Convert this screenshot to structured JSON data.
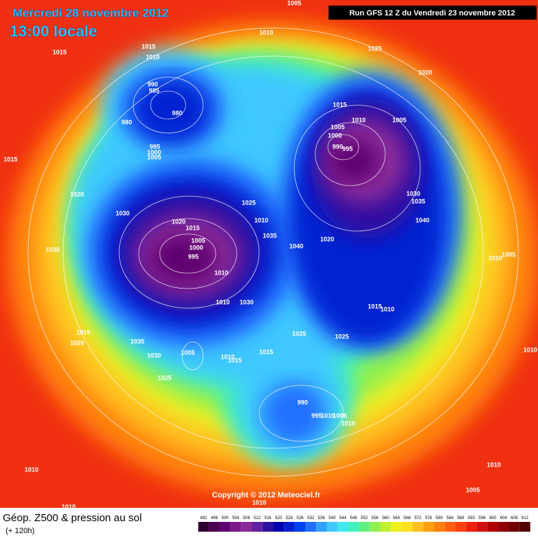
{
  "header": {
    "date": "Mercredi 28 novembre 2012",
    "time": "13:00 locale",
    "run": "Run GFS 12 Z du Vendredi 23 novembre 2012"
  },
  "copyright": "Copyright © 2012 Meteociel.fr",
  "footer": {
    "title": "Géop. Z500 & pression au sol",
    "lead": "(+ 120h)"
  },
  "isobar_labels": [
    1005,
    1010,
    1015,
    1015,
    1010,
    1025,
    1020,
    990,
    985,
    980,
    980,
    1015,
    1010,
    1005,
    1005,
    1000,
    995,
    990,
    995,
    1000,
    1005,
    1015,
    1020,
    1025,
    1030,
    1035,
    1030,
    1020,
    1015,
    1040,
    1010,
    1005,
    1035,
    1020,
    1040,
    1000,
    995,
    1005,
    1010,
    1030,
    1010,
    1010,
    1030,
    1015,
    1010,
    1025,
    1025,
    1015,
    1020,
    1035,
    1015,
    1005,
    1010,
    1015,
    1030,
    1010,
    1025,
    990,
    995,
    1010,
    1005,
    1010,
    1010,
    1010,
    1005,
    1010,
    1010
  ],
  "color_scale": {
    "values": [
      492,
      496,
      500,
      504,
      508,
      512,
      516,
      520,
      524,
      528,
      532,
      536,
      540,
      544,
      548,
      552,
      556,
      560,
      564,
      568,
      572,
      576,
      580,
      584,
      588,
      592,
      596,
      600,
      604,
      608,
      612
    ],
    "colors": [
      "#300030",
      "#4b0050",
      "#600070",
      "#7a1a8a",
      "#8a2a9a",
      "#6020a0",
      "#3010a0",
      "#0000b0",
      "#0020d0",
      "#0040f0",
      "#2070ff",
      "#30a0ff",
      "#40c8ff",
      "#40e8f0",
      "#40f0c0",
      "#60f080",
      "#90f050",
      "#c0f030",
      "#f0f020",
      "#ffe020",
      "#ffc020",
      "#ffa010",
      "#ff8010",
      "#ff6010",
      "#ff4010",
      "#f02010",
      "#d01010",
      "#b00000",
      "#900000",
      "#700000",
      "#500000"
    ]
  }
}
